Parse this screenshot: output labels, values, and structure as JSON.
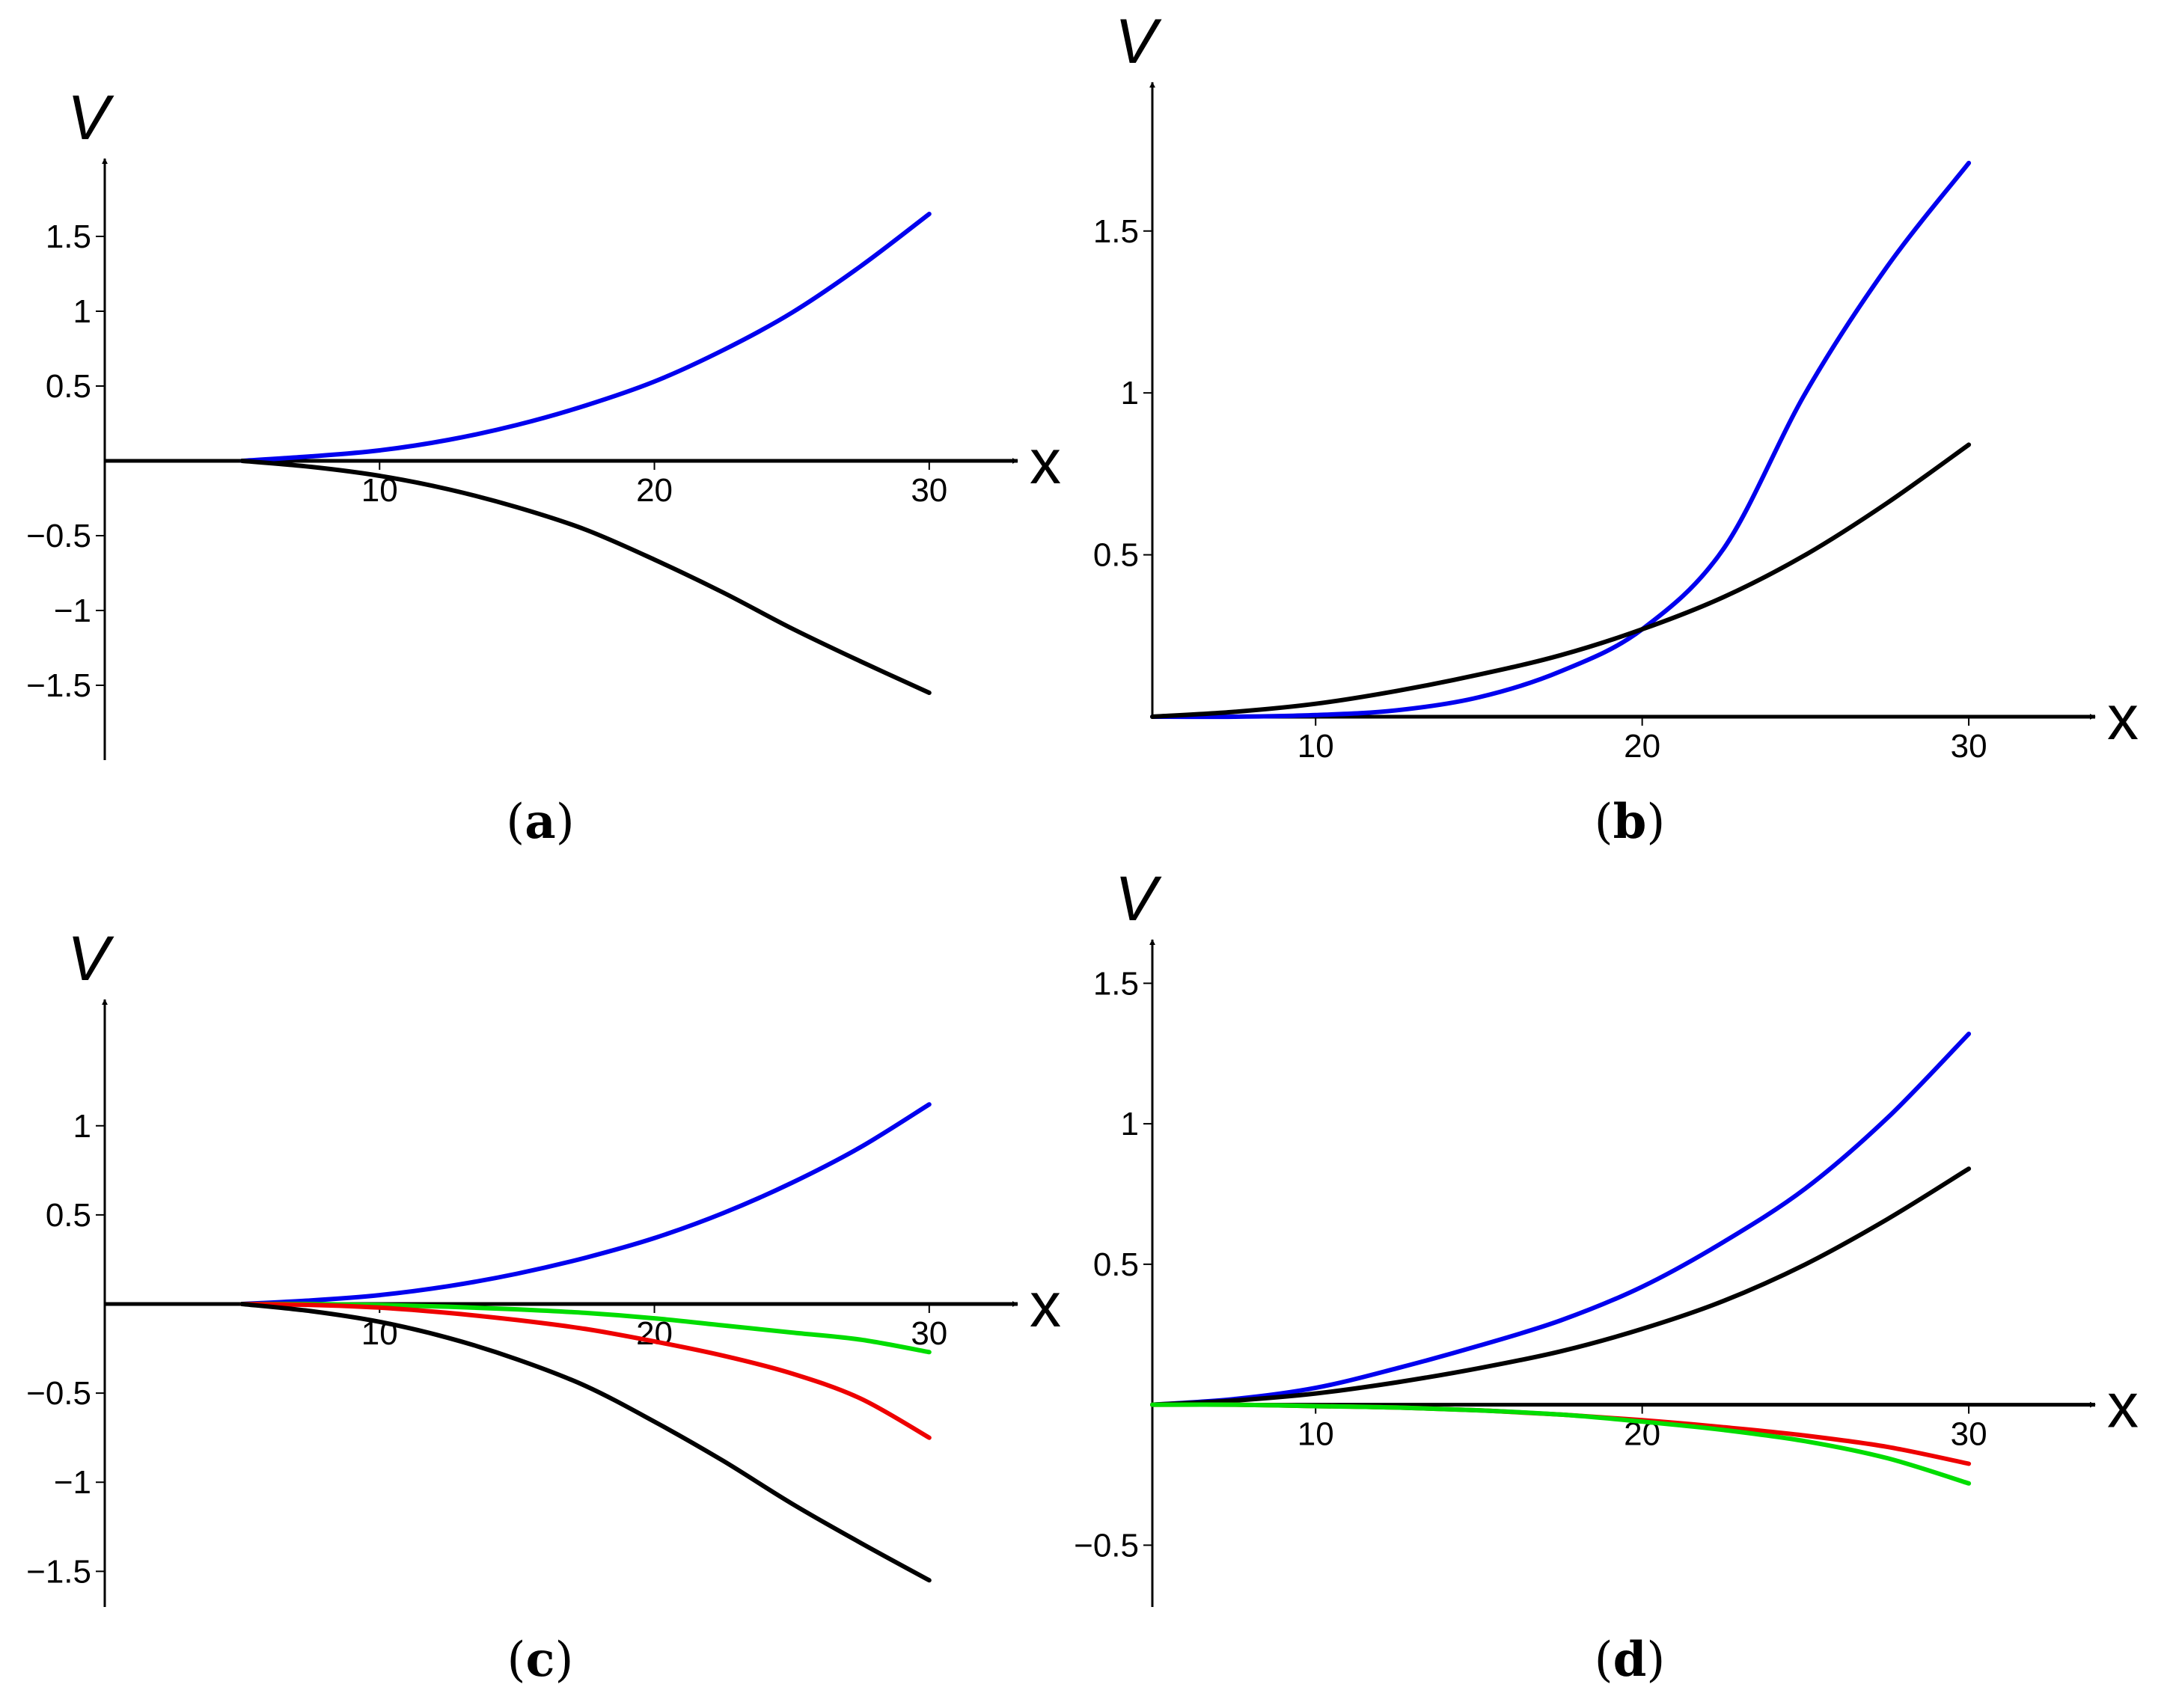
{
  "chart_data": [
    {
      "type": "line",
      "panel_label": "a",
      "xlabel": "x",
      "ylabel": "V",
      "xlim": [
        0,
        33
      ],
      "ylim": [
        -2.0,
        2.0
      ],
      "x_ticks": [
        10,
        20,
        30
      ],
      "y_ticks": [
        -1.5,
        -1,
        -0.5,
        0.5,
        1,
        1.5
      ],
      "y_tick_labels": [
        "−1.5",
        "−1",
        "−0.5",
        "0.5",
        "1",
        "1.5"
      ],
      "grid": false,
      "series": [
        {
          "color": "#0000ee",
          "x": [
            5,
            7.5,
            10,
            12.5,
            15,
            17.5,
            20,
            22.5,
            25,
            27.5,
            30
          ],
          "y": [
            0,
            0.03,
            0.07,
            0.14,
            0.24,
            0.37,
            0.53,
            0.74,
            0.99,
            1.3,
            1.65
          ]
        },
        {
          "color": "#000000",
          "x": [
            5,
            7.5,
            10,
            12.5,
            15,
            17.5,
            20,
            22.5,
            25,
            27.5,
            30
          ],
          "y": [
            0,
            -0.04,
            -0.1,
            -0.19,
            -0.31,
            -0.46,
            -0.66,
            -0.88,
            -1.12,
            -1.34,
            -1.55
          ]
        }
      ]
    },
    {
      "type": "line",
      "panel_label": "b",
      "xlabel": "x",
      "ylabel": "V",
      "xlim": [
        5,
        33
      ],
      "ylim": [
        0,
        1.95
      ],
      "x_ticks": [
        10,
        20,
        30
      ],
      "y_ticks": [
        0.5,
        1,
        1.5
      ],
      "y_tick_labels": [
        "0.5",
        "1",
        "1.5"
      ],
      "grid": false,
      "series": [
        {
          "color": "#0000ee",
          "x": [
            5,
            7.5,
            10,
            12.5,
            15,
            17.5,
            20,
            22.5,
            25,
            27.5,
            30
          ],
          "y": [
            0,
            0,
            0.005,
            0.02,
            0.06,
            0.14,
            0.27,
            0.52,
            1.0,
            1.39,
            1.71
          ]
        },
        {
          "color": "#000000",
          "x": [
            5,
            7.5,
            10,
            12.5,
            15,
            17.5,
            20,
            22.5,
            25,
            27.5,
            30
          ],
          "y": [
            0,
            0.015,
            0.04,
            0.08,
            0.13,
            0.19,
            0.27,
            0.37,
            0.5,
            0.66,
            0.84
          ]
        }
      ]
    },
    {
      "type": "line",
      "panel_label": "c",
      "xlabel": "x",
      "ylabel": "V",
      "xlim": [
        0,
        33
      ],
      "ylim": [
        -1.7,
        1.7
      ],
      "x_ticks": [
        10,
        20,
        30
      ],
      "y_ticks": [
        -1.5,
        -1,
        -0.5,
        0.5,
        1
      ],
      "y_tick_labels": [
        "−1.5",
        "−1",
        "−0.5",
        "0.5",
        "1"
      ],
      "grid": false,
      "series": [
        {
          "color": "#0000ee",
          "x": [
            5,
            7.5,
            10,
            12.5,
            15,
            17.5,
            20,
            22.5,
            25,
            27.5,
            30
          ],
          "y": [
            0,
            0.02,
            0.05,
            0.1,
            0.17,
            0.26,
            0.37,
            0.51,
            0.68,
            0.88,
            1.12
          ]
        },
        {
          "color": "#00dd00",
          "x": [
            5,
            7.5,
            10,
            12.5,
            15,
            17.5,
            20,
            22.5,
            25,
            27.5,
            30
          ],
          "y": [
            0,
            0,
            -0.005,
            -0.015,
            -0.03,
            -0.05,
            -0.08,
            -0.12,
            -0.16,
            -0.2,
            -0.27
          ]
        },
        {
          "color": "#ee0000",
          "x": [
            5,
            7.5,
            10,
            12.5,
            15,
            17.5,
            20,
            22.5,
            25,
            27.5,
            30
          ],
          "y": [
            0,
            -0.005,
            -0.02,
            -0.05,
            -0.09,
            -0.14,
            -0.21,
            -0.29,
            -0.39,
            -0.53,
            -0.75
          ]
        },
        {
          "color": "#000000",
          "x": [
            5,
            7.5,
            10,
            12.5,
            15,
            17.5,
            20,
            22.5,
            25,
            27.5,
            30
          ],
          "y": [
            0,
            -0.04,
            -0.1,
            -0.19,
            -0.31,
            -0.46,
            -0.66,
            -0.88,
            -1.12,
            -1.34,
            -1.55
          ]
        }
      ]
    },
    {
      "type": "line",
      "panel_label": "d",
      "xlabel": "x",
      "ylabel": "V",
      "xlim": [
        5,
        33
      ],
      "ylim": [
        -0.72,
        1.65
      ],
      "x_ticks": [
        10,
        20,
        30
      ],
      "y_ticks": [
        -0.5,
        0.5,
        1,
        1.5
      ],
      "y_tick_labels": [
        "−0.5",
        "0.5",
        "1",
        "1.5"
      ],
      "grid": false,
      "series": [
        {
          "color": "#0000ee",
          "x": [
            5,
            7.5,
            10,
            12.5,
            15,
            17.5,
            20,
            22.5,
            25,
            27.5,
            30
          ],
          "y": [
            0,
            0.02,
            0.06,
            0.13,
            0.21,
            0.3,
            0.42,
            0.58,
            0.77,
            1.02,
            1.32
          ]
        },
        {
          "color": "#000000",
          "x": [
            5,
            7.5,
            10,
            12.5,
            15,
            17.5,
            20,
            22.5,
            25,
            27.5,
            30
          ],
          "y": [
            0,
            0.015,
            0.04,
            0.08,
            0.13,
            0.19,
            0.27,
            0.37,
            0.5,
            0.66,
            0.84
          ]
        },
        {
          "color": "#ee0000",
          "x": [
            5,
            7.5,
            10,
            12.5,
            15,
            17.5,
            20,
            22.5,
            25,
            27.5,
            30
          ],
          "y": [
            0,
            0,
            -0.005,
            -0.01,
            -0.02,
            -0.035,
            -0.055,
            -0.08,
            -0.11,
            -0.15,
            -0.21
          ]
        },
        {
          "color": "#00dd00",
          "x": [
            5,
            7.5,
            10,
            12.5,
            15,
            17.5,
            20,
            22.5,
            25,
            27.5,
            30
          ],
          "y": [
            0,
            0,
            -0.005,
            -0.01,
            -0.02,
            -0.035,
            -0.06,
            -0.09,
            -0.13,
            -0.19,
            -0.28
          ]
        }
      ]
    }
  ]
}
